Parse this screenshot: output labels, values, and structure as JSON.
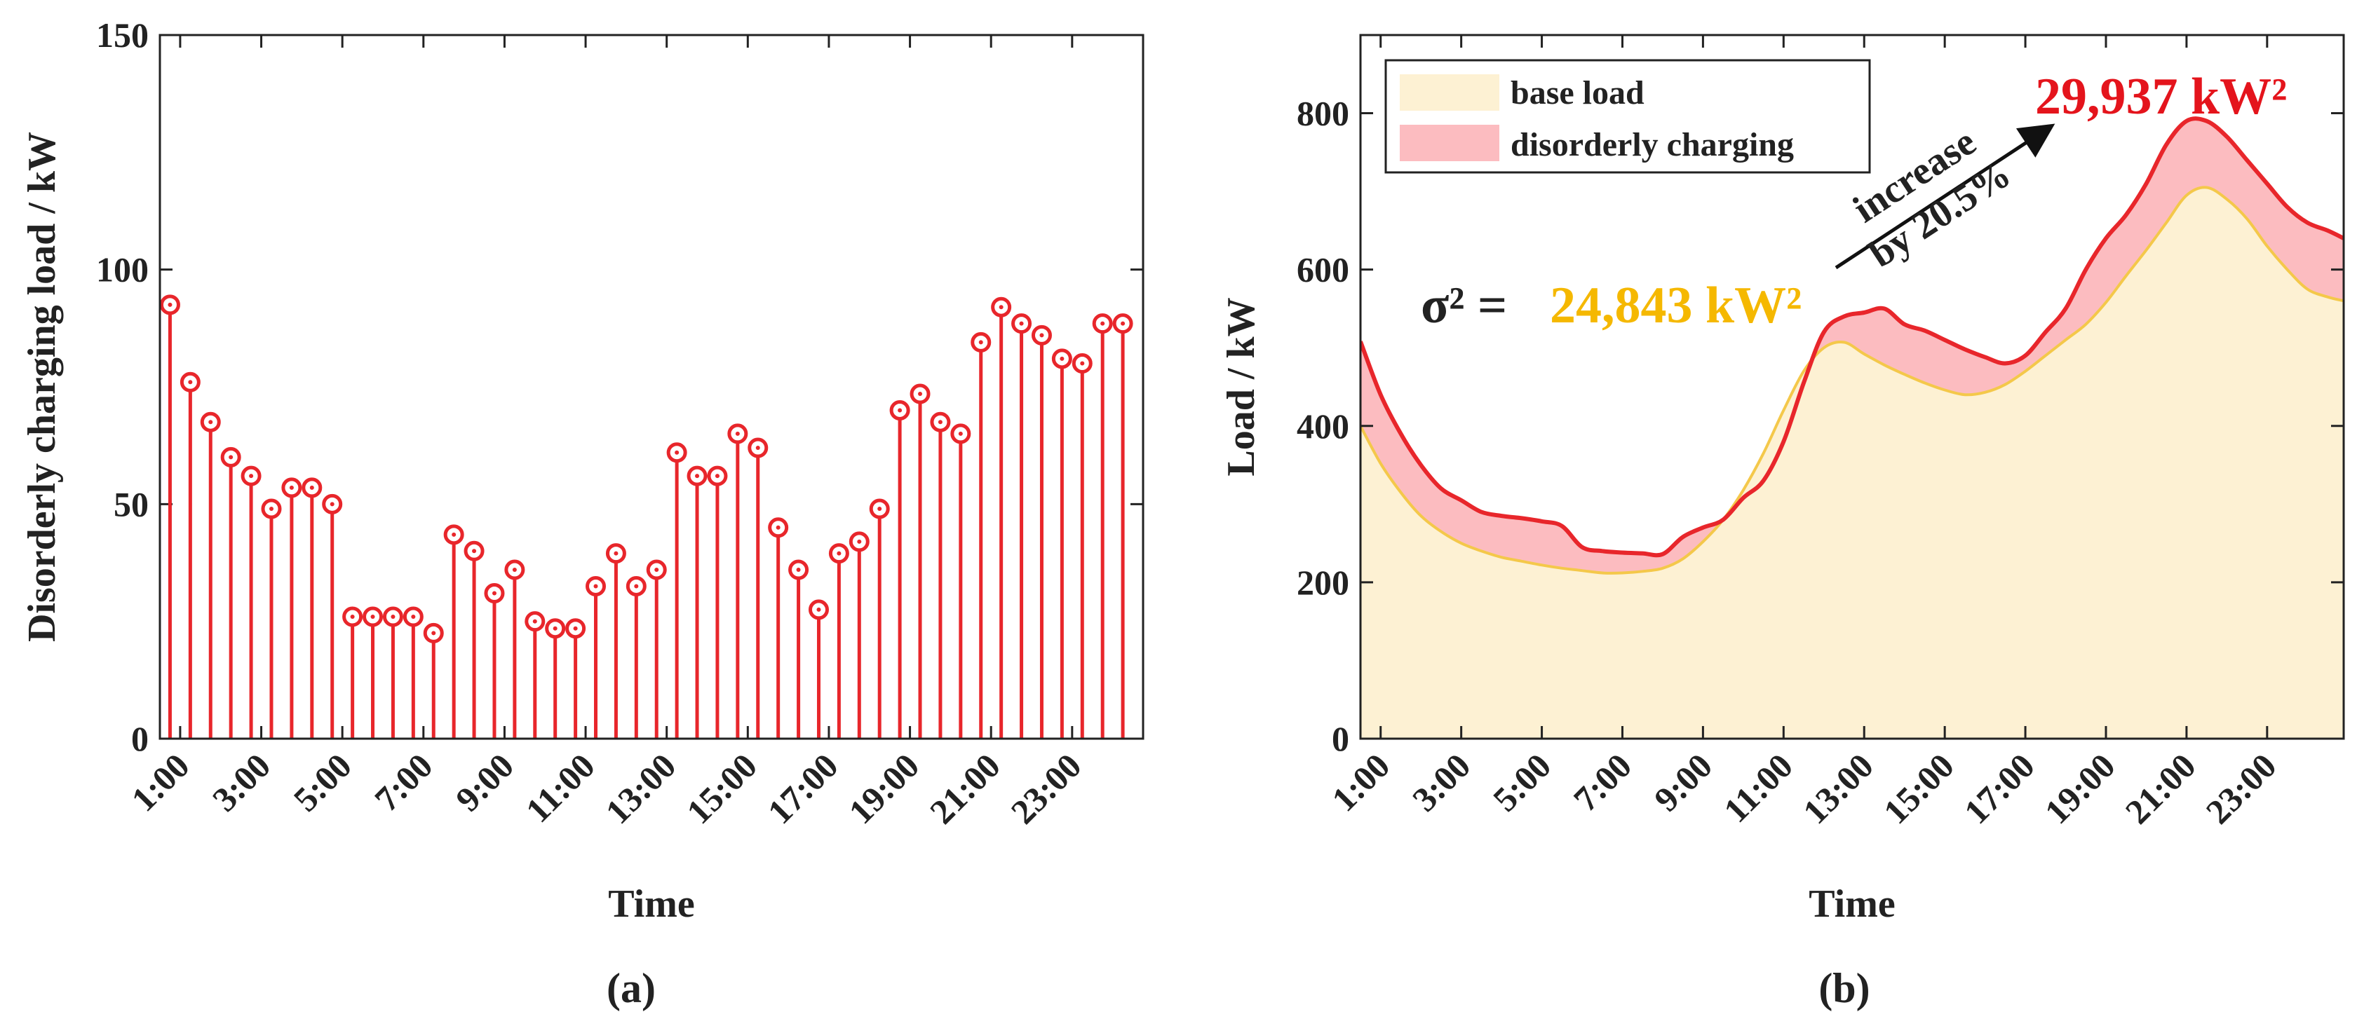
{
  "colors": {
    "stem": "#e8262b",
    "base_fill": "#fdf1d3",
    "base_line": "#f4c84a",
    "charging_fill": "#fcbcc0",
    "total_line": "#e8262b",
    "sigma_base": "#f5b800",
    "sigma_total": "#e4141c",
    "axis": "#222222"
  },
  "chart_data": [
    {
      "type": "bar",
      "panel": "(a)",
      "style": "stem",
      "xlabel": "Time",
      "ylabel": "Disorderly charging load / kW",
      "ylim": [
        0,
        150
      ],
      "yticks": [
        "0",
        "50",
        "100",
        "150"
      ],
      "xlim": [
        0.5,
        24.75
      ],
      "xticks": [
        {
          "x": 1,
          "label": "1:00"
        },
        {
          "x": 3,
          "label": "3:00"
        },
        {
          "x": 5,
          "label": "5:00"
        },
        {
          "x": 7,
          "label": "7:00"
        },
        {
          "x": 9,
          "label": "9:00"
        },
        {
          "x": 11,
          "label": "11:00"
        },
        {
          "x": 13,
          "label": "13:00"
        },
        {
          "x": 15,
          "label": "15:00"
        },
        {
          "x": 17,
          "label": "17:00"
        },
        {
          "x": 19,
          "label": "19:00"
        },
        {
          "x": 21,
          "label": "21:00"
        },
        {
          "x": 23,
          "label": "23:00"
        }
      ],
      "x": [
        0.75,
        1.25,
        1.75,
        2.25,
        2.75,
        3.25,
        3.75,
        4.25,
        4.75,
        5.25,
        5.75,
        6.25,
        6.75,
        7.25,
        7.75,
        8.25,
        8.75,
        9.25,
        9.75,
        10.25,
        10.75,
        11.25,
        11.75,
        12.25,
        12.75,
        13.25,
        13.75,
        14.25,
        14.75,
        15.25,
        15.75,
        16.25,
        16.75,
        17.25,
        17.75,
        18.25,
        18.75,
        19.25,
        19.75,
        20.25,
        20.75,
        21.25,
        21.75,
        22.25,
        22.75,
        23.25,
        23.75,
        24.25
      ],
      "values": [
        92.5,
        76,
        67.5,
        60,
        56,
        49,
        53.5,
        53.5,
        50,
        26,
        26,
        26,
        26,
        22.5,
        43.5,
        40,
        31,
        36,
        25,
        23.5,
        23.5,
        32.5,
        39.5,
        32.5,
        36,
        61,
        56,
        56,
        65,
        62,
        45,
        36,
        27.5,
        39.5,
        42,
        49,
        70,
        73.5,
        67.5,
        65,
        84.5,
        92,
        88.5,
        86,
        81,
        80,
        88.5,
        88.5
      ]
    },
    {
      "type": "area",
      "panel": "(b)",
      "xlabel": "Time",
      "ylabel": "Load / kW",
      "ylim": [
        0,
        900
      ],
      "yticks": [
        "0",
        "200",
        "400",
        "600",
        "800"
      ],
      "xlim": [
        0.5,
        24.9
      ],
      "xticks": [
        {
          "x": 1,
          "label": "1:00"
        },
        {
          "x": 3,
          "label": "3:00"
        },
        {
          "x": 5,
          "label": "5:00"
        },
        {
          "x": 7,
          "label": "7:00"
        },
        {
          "x": 9,
          "label": "9:00"
        },
        {
          "x": 11,
          "label": "11:00"
        },
        {
          "x": 13,
          "label": "13:00"
        },
        {
          "x": 15,
          "label": "15:00"
        },
        {
          "x": 17,
          "label": "17:00"
        },
        {
          "x": 19,
          "label": "19:00"
        },
        {
          "x": 21,
          "label": "21:00"
        },
        {
          "x": 23,
          "label": "23:00"
        }
      ],
      "x": [
        0.5,
        1,
        1.5,
        2,
        2.5,
        3,
        3.5,
        4,
        4.5,
        5,
        5.5,
        6,
        6.5,
        7,
        7.5,
        8,
        8.5,
        9,
        9.5,
        10,
        10.5,
        11,
        11.5,
        12,
        12.5,
        13,
        13.5,
        14,
        14.5,
        15,
        15.5,
        16,
        16.5,
        17,
        17.5,
        18,
        18.5,
        19,
        19.5,
        20,
        20.5,
        21,
        21.5,
        22,
        22.5,
        23,
        23.5,
        24,
        24.5,
        24.9
      ],
      "series": [
        {
          "name": "base load",
          "values": [
            400,
            352,
            315,
            285,
            265,
            250,
            240,
            232,
            227,
            222,
            218,
            215,
            212,
            212,
            214,
            218,
            230,
            252,
            280,
            318,
            365,
            420,
            470,
            500,
            507,
            492,
            478,
            466,
            455,
            446,
            440,
            443,
            453,
            470,
            490,
            510,
            530,
            558,
            592,
            625,
            660,
            695,
            705,
            690,
            665,
            630,
            600,
            575,
            565,
            560
          ]
        },
        {
          "name": "total (base load + disorderly charging)",
          "values": [
            508,
            440,
            390,
            350,
            320,
            305,
            290,
            285,
            282,
            278,
            272,
            245,
            240,
            238,
            237,
            236,
            258,
            270,
            280,
            308,
            330,
            380,
            455,
            520,
            540,
            545,
            550,
            530,
            522,
            510,
            498,
            488,
            480,
            490,
            520,
            550,
            600,
            640,
            670,
            710,
            760,
            790,
            790,
            770,
            740,
            710,
            680,
            660,
            650,
            640
          ]
        }
      ],
      "legend": [
        {
          "label": "base load",
          "swatch": "base"
        },
        {
          "label": "disorderly charging",
          "swatch": "charging"
        }
      ],
      "legend_position": "top-left",
      "annotations": {
        "sigma_prefix": "σ² =",
        "sigma_base": "24,843 kW²",
        "sigma_total": "29,937 kW²",
        "increase_line1": "increase",
        "increase_line2": "by 20.5%"
      }
    }
  ],
  "captions": {
    "a": "(a)",
    "b": "(b)"
  }
}
